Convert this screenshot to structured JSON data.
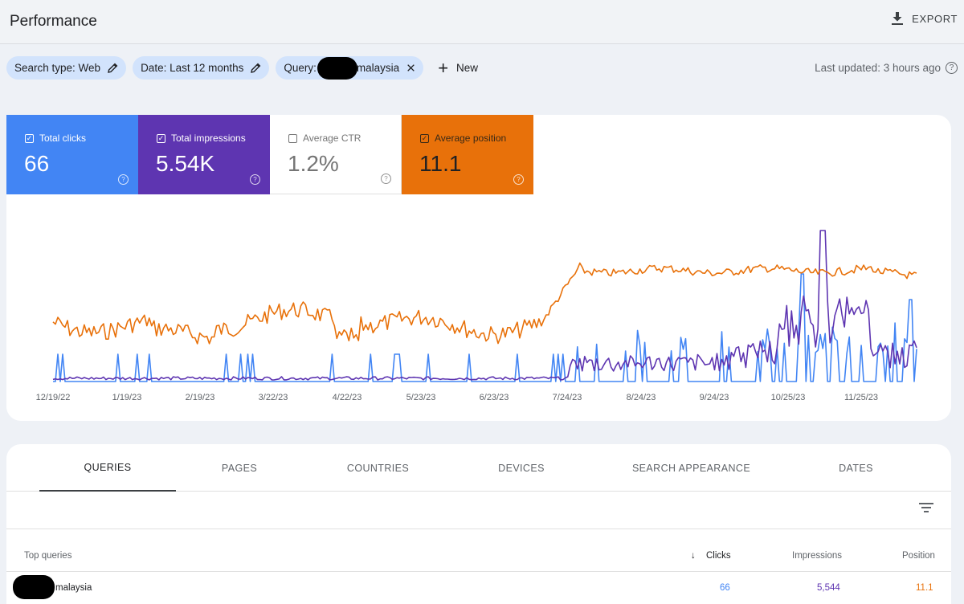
{
  "header": {
    "title": "Performance",
    "export_label": "EXPORT"
  },
  "filters": {
    "chips": [
      {
        "label": "Search type: Web"
      },
      {
        "label": "Date: Last 12 months"
      },
      {
        "prefix": "Query:",
        "suffix": "malaysia"
      }
    ],
    "new_label": "New",
    "last_updated": "Last updated: 3 hours ago"
  },
  "metrics": {
    "clicks": {
      "label": "Total clicks",
      "value": "66",
      "checked": true,
      "color": "#4285f4"
    },
    "impressions": {
      "label": "Total impressions",
      "value": "5.54K",
      "checked": true,
      "color": "#5e35b1"
    },
    "ctr": {
      "label": "Average CTR",
      "value": "1.2%",
      "checked": false
    },
    "position": {
      "label": "Average position",
      "value": "11.1",
      "checked": true,
      "color": "#e8710a"
    }
  },
  "chart_data": {
    "type": "line",
    "x_tick_labels": [
      "12/19/22",
      "1/19/23",
      "2/19/23",
      "3/22/23",
      "4/22/23",
      "5/23/23",
      "6/23/23",
      "7/24/23",
      "8/24/23",
      "9/24/23",
      "10/25/23",
      "11/25/23"
    ],
    "series": [
      {
        "name": "Clicks",
        "color": "#4285f4"
      },
      {
        "name": "Impressions",
        "color": "#5e35b1"
      },
      {
        "name": "Position",
        "color": "#e8710a"
      }
    ]
  },
  "tabs": [
    "QUERIES",
    "PAGES",
    "COUNTRIES",
    "DEVICES",
    "SEARCH APPEARANCE",
    "DATES"
  ],
  "table": {
    "columns": {
      "query": "Top queries",
      "clicks": "Clicks",
      "impressions": "Impressions",
      "position": "Position"
    },
    "rows": [
      {
        "query": "malaysia",
        "clicks": "66",
        "impressions": "5,544",
        "position": "11.1"
      }
    ]
  }
}
